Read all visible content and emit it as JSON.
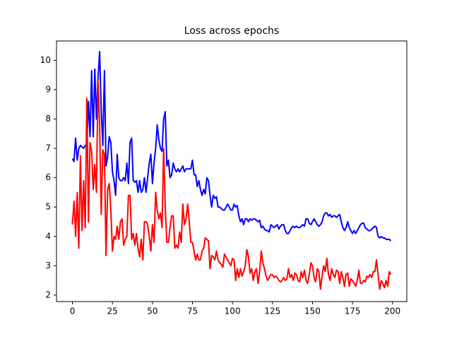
{
  "chart_data": {
    "type": "line",
    "title": "Loss across epochs",
    "x": [
      0,
      1,
      2,
      3,
      4,
      5,
      6,
      7,
      8,
      9,
      10,
      11,
      12,
      13,
      14,
      15,
      16,
      17,
      18,
      19,
      20,
      21,
      22,
      23,
      24,
      25,
      26,
      27,
      28,
      29,
      30,
      31,
      32,
      33,
      34,
      35,
      36,
      37,
      38,
      39,
      40,
      41,
      42,
      43,
      44,
      45,
      46,
      47,
      48,
      49,
      50,
      51,
      52,
      53,
      54,
      55,
      56,
      57,
      58,
      59,
      60,
      61,
      62,
      63,
      64,
      65,
      66,
      67,
      68,
      69,
      70,
      71,
      72,
      73,
      74,
      75,
      76,
      77,
      78,
      79,
      80,
      81,
      82,
      83,
      84,
      85,
      86,
      87,
      88,
      89,
      90,
      91,
      92,
      93,
      94,
      95,
      96,
      97,
      98,
      99,
      100,
      101,
      102,
      103,
      104,
      105,
      106,
      107,
      108,
      109,
      110,
      111,
      112,
      113,
      114,
      115,
      116,
      117,
      118,
      119,
      120,
      121,
      122,
      123,
      124,
      125,
      126,
      127,
      128,
      129,
      130,
      131,
      132,
      133,
      134,
      135,
      136,
      137,
      138,
      139,
      140,
      141,
      142,
      143,
      144,
      145,
      146,
      147,
      148,
      149,
      150,
      151,
      152,
      153,
      154,
      155,
      156,
      157,
      158,
      159,
      160,
      161,
      162,
      163,
      164,
      165,
      166,
      167,
      168,
      169,
      170,
      171,
      172,
      173,
      174,
      175,
      176,
      177,
      178,
      179,
      180,
      181,
      182,
      183,
      184,
      185,
      186,
      187,
      188,
      189,
      190,
      191,
      192,
      193,
      194,
      195,
      196,
      197,
      198,
      199
    ],
    "series": [
      {
        "color": "#0000ff",
        "values": [
          6.65,
          6.55,
          7.35,
          6.6,
          7.0,
          7.1,
          7.05,
          7.0,
          7.1,
          7.15,
          8.6,
          7.4,
          9.65,
          7.4,
          9.7,
          8.0,
          9.4,
          10.3,
          8.3,
          7.1,
          9.65,
          6.4,
          6.7,
          7.4,
          7.2,
          6.2,
          5.9,
          5.4,
          6.8,
          6.0,
          5.9,
          5.9,
          6.0,
          5.9,
          6.5,
          5.8,
          7.2,
          7.35,
          5.9,
          5.85,
          5.9,
          5.5,
          5.9,
          5.5,
          5.6,
          6.0,
          5.5,
          6.0,
          6.5,
          6.8,
          5.8,
          6.5,
          7.0,
          7.8,
          7.3,
          7.0,
          6.9,
          8.0,
          8.25,
          6.4,
          6.6,
          6.0,
          6.1,
          6.5,
          6.3,
          6.2,
          6.3,
          6.2,
          6.3,
          6.4,
          6.2,
          6.3,
          6.3,
          6.3,
          6.3,
          6.6,
          6.1,
          6.1,
          5.7,
          5.9,
          5.6,
          5.4,
          5.6,
          5.45,
          6.0,
          5.9,
          5.4,
          5.0,
          5.4,
          5.3,
          5.35,
          5.0,
          5.0,
          4.95,
          4.9,
          4.9,
          5.0,
          5.1,
          5.0,
          4.9,
          4.9,
          5.1,
          5.0,
          5.05,
          4.7,
          4.5,
          4.6,
          4.4,
          4.6,
          4.6,
          4.5,
          4.6,
          4.55,
          4.6,
          4.6,
          4.55,
          4.5,
          4.55,
          4.3,
          4.35,
          4.25,
          4.2,
          4.2,
          4.15,
          4.4,
          4.35,
          4.3,
          4.35,
          4.4,
          4.25,
          4.35,
          4.4,
          4.4,
          4.2,
          4.1,
          4.1,
          4.2,
          4.3,
          4.35,
          4.3,
          4.35,
          4.3,
          4.3,
          4.35,
          4.4,
          4.35,
          4.6,
          4.6,
          4.45,
          4.4,
          4.5,
          4.6,
          4.5,
          4.4,
          4.35,
          4.4,
          4.5,
          4.7,
          4.8,
          4.8,
          4.7,
          4.75,
          4.65,
          4.7,
          4.7,
          4.65,
          4.7,
          4.75,
          4.5,
          4.3,
          4.2,
          4.3,
          4.5,
          4.3,
          4.2,
          4.1,
          4.2,
          4.1,
          4.2,
          4.3,
          4.4,
          4.45,
          4.45,
          4.3,
          4.25,
          4.2,
          4.2,
          4.25,
          4.3,
          4.35,
          4.3,
          4.0,
          3.95,
          4.0,
          3.95,
          3.95,
          3.9,
          3.9,
          3.9,
          3.85
        ]
      },
      {
        "color": "#ff0000",
        "values": [
          4.4,
          5.2,
          4.0,
          5.5,
          3.6,
          6.75,
          4.2,
          5.9,
          4.3,
          8.7,
          4.5,
          7.2,
          6.9,
          5.6,
          6.45,
          5.5,
          9.3,
          7.8,
          4.75,
          6.95,
          6.8,
          3.35,
          5.6,
          5.8,
          4.9,
          3.5,
          4.0,
          3.9,
          4.35,
          3.9,
          4.5,
          4.6,
          3.7,
          3.9,
          4.0,
          5.4,
          5.4,
          3.9,
          4.1,
          3.7,
          4.1,
          3.6,
          3.3,
          3.9,
          3.2,
          4.5,
          4.5,
          4.4,
          4.0,
          3.5,
          4.4,
          3.8,
          5.5,
          4.9,
          4.6,
          4.8,
          4.3,
          7.0,
          5.0,
          3.8,
          3.8,
          4.3,
          4.7,
          4.7,
          3.6,
          3.7,
          3.6,
          4.15,
          3.8,
          5.1,
          4.4,
          4.6,
          5.1,
          4.5,
          3.8,
          3.8,
          3.5,
          3.2,
          3.4,
          3.2,
          3.2,
          3.5,
          3.6,
          3.95,
          3.9,
          3.85,
          2.9,
          3.35,
          3.3,
          3.2,
          3.5,
          3.2,
          3.1,
          3.05,
          2.95,
          3.4,
          3.3,
          3.2,
          3.1,
          3.0,
          3.25,
          3.2,
          2.5,
          2.9,
          2.6,
          2.9,
          2.65,
          2.8,
          3.0,
          3.55,
          3.3,
          2.75,
          2.9,
          2.5,
          2.8,
          2.9,
          2.4,
          2.8,
          3.5,
          3.1,
          2.9,
          2.65,
          2.5,
          2.6,
          2.7,
          2.7,
          2.6,
          2.65,
          2.6,
          2.5,
          2.45,
          2.5,
          2.6,
          2.5,
          2.55,
          2.9,
          2.6,
          2.7,
          2.5,
          2.75,
          2.7,
          2.5,
          2.45,
          2.8,
          2.6,
          2.85,
          2.5,
          2.4,
          2.7,
          3.1,
          3.0,
          2.6,
          2.45,
          2.9,
          2.8,
          2.2,
          2.65,
          3.0,
          2.8,
          3.25,
          2.7,
          2.5,
          2.9,
          2.7,
          2.6,
          2.85,
          2.8,
          2.4,
          2.8,
          2.6,
          2.3,
          2.7,
          2.75,
          2.3,
          2.55,
          2.5,
          2.4,
          2.3,
          2.5,
          2.85,
          2.4,
          2.4,
          2.5,
          2.45,
          2.65,
          2.6,
          2.7,
          2.6,
          2.8,
          2.8,
          3.2,
          2.7,
          2.2,
          2.5,
          2.4,
          2.25,
          2.5,
          2.3,
          2.8,
          2.7
        ]
      }
    ],
    "xlim": [
      -9.95,
      208.95
    ],
    "ylim": [
      1.78,
      10.66
    ],
    "xticks": [
      0,
      25,
      50,
      75,
      100,
      125,
      150,
      175,
      200
    ],
    "yticks": [
      2,
      3,
      4,
      5,
      6,
      7,
      8,
      9,
      10
    ]
  }
}
